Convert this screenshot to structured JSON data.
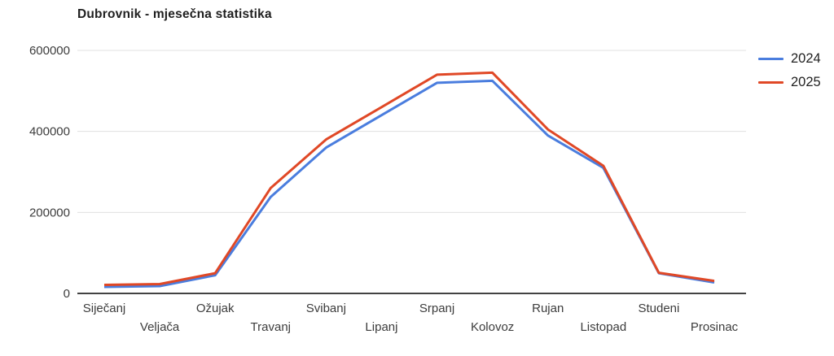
{
  "title": "Dubrovnik - mjesečna statistika",
  "legend": {
    "position": "right",
    "entries": [
      {
        "label": "2024",
        "color": "#4a7dde"
      },
      {
        "label": "2025",
        "color": "#e04826"
      }
    ]
  },
  "chart_data": {
    "type": "line",
    "title": "Dubrovnik - mjesečna statistika",
    "categories": [
      "Siječanj",
      "Veljača",
      "Ožujak",
      "Travanj",
      "Svibanj",
      "Lipanj",
      "Srpanj",
      "Kolovoz",
      "Rujan",
      "Listopad",
      "Studeni",
      "Prosinac"
    ],
    "series": [
      {
        "name": "2024",
        "color": "#4a7dde",
        "values": [
          16000,
          18000,
          45000,
          238000,
          360000,
          440000,
          520000,
          525000,
          390000,
          310000,
          50000,
          27000
        ]
      },
      {
        "name": "2025",
        "color": "#e04826",
        "values": [
          21000,
          23000,
          50000,
          260000,
          380000,
          460000,
          540000,
          545000,
          405000,
          315000,
          51000,
          31000
        ]
      }
    ],
    "xlabel": "",
    "ylabel": "",
    "ylim": [
      0,
      600000
    ],
    "yticks": [
      0,
      200000,
      400000,
      600000
    ],
    "grid": true,
    "gridline_color": "#e0e0e0",
    "axis_line_color": "#424242",
    "axis_text_color": "#3c3c3c",
    "legend_position": "right",
    "x_labels_staggered": true
  }
}
